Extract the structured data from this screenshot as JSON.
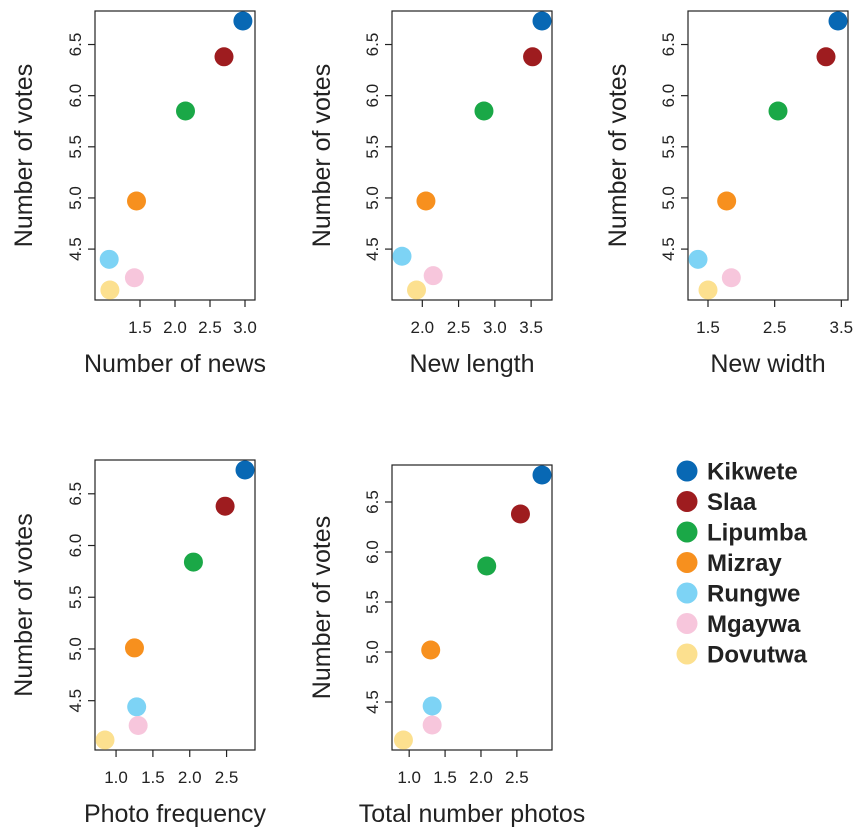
{
  "legend": {
    "entries": [
      {
        "name": "Kikwete",
        "color": "#0868b4"
      },
      {
        "name": "Slaa",
        "color": "#9e1c1f"
      },
      {
        "name": "Lipumba",
        "color": "#1aa847"
      },
      {
        "name": "Mizray",
        "color": "#f7901e"
      },
      {
        "name": "Rungwe",
        "color": "#7dd3f5"
      },
      {
        "name": "Mgaywa",
        "color": "#f7c6dc"
      },
      {
        "name": "Dovutwa",
        "color": "#fce08f"
      }
    ]
  },
  "chart_data": [
    {
      "type": "scatter",
      "xlabel": "Number of news",
      "ylabel": "Number of votes",
      "xticks": [
        1.5,
        2.0,
        2.5,
        3.0
      ],
      "yticks": [
        4.5,
        5.0,
        5.5,
        6.0,
        6.5
      ],
      "xlim": [
        1.0,
        3.0
      ],
      "ylim": [
        4.1,
        6.73
      ],
      "points": [
        {
          "series": "Kikwete",
          "x": 2.97,
          "y": 6.73
        },
        {
          "series": "Slaa",
          "x": 2.7,
          "y": 6.38
        },
        {
          "series": "Lipumba",
          "x": 2.15,
          "y": 5.85
        },
        {
          "series": "Mizray",
          "x": 1.45,
          "y": 4.97
        },
        {
          "series": "Rungwe",
          "x": 1.06,
          "y": 4.4
        },
        {
          "series": "Mgaywa",
          "x": 1.42,
          "y": 4.22
        },
        {
          "series": "Dovutwa",
          "x": 1.07,
          "y": 4.1
        }
      ]
    },
    {
      "type": "scatter",
      "xlabel": "New length",
      "ylabel": "Number of votes",
      "xticks": [
        2.0,
        2.5,
        3.0,
        3.5
      ],
      "yticks": [
        4.5,
        5.0,
        5.5,
        6.0,
        6.5
      ],
      "xlim": [
        1.72,
        3.65
      ],
      "ylim": [
        4.1,
        6.73
      ],
      "points": [
        {
          "series": "Kikwete",
          "x": 3.65,
          "y": 6.73
        },
        {
          "series": "Slaa",
          "x": 3.52,
          "y": 6.38
        },
        {
          "series": "Lipumba",
          "x": 2.85,
          "y": 5.85
        },
        {
          "series": "Mizray",
          "x": 2.05,
          "y": 4.97
        },
        {
          "series": "Rungwe",
          "x": 1.72,
          "y": 4.43
        },
        {
          "series": "Mgaywa",
          "x": 2.15,
          "y": 4.24
        },
        {
          "series": "Dovutwa",
          "x": 1.92,
          "y": 4.1
        }
      ]
    },
    {
      "type": "scatter",
      "xlabel": "New width",
      "ylabel": "Number of votes",
      "xticks": [
        1.5,
        2.5,
        3.5
      ],
      "yticks": [
        4.5,
        5.0,
        5.5,
        6.0,
        6.5
      ],
      "xlim": [
        1.35,
        3.45
      ],
      "ylim": [
        4.1,
        6.73
      ],
      "points": [
        {
          "series": "Kikwete",
          "x": 3.45,
          "y": 6.73
        },
        {
          "series": "Slaa",
          "x": 3.27,
          "y": 6.38
        },
        {
          "series": "Lipumba",
          "x": 2.55,
          "y": 5.85
        },
        {
          "series": "Mizray",
          "x": 1.78,
          "y": 4.97
        },
        {
          "series": "Rungwe",
          "x": 1.35,
          "y": 4.4
        },
        {
          "series": "Mgaywa",
          "x": 1.85,
          "y": 4.22
        },
        {
          "series": "Dovutwa",
          "x": 1.5,
          "y": 4.1
        }
      ]
    },
    {
      "type": "scatter",
      "xlabel": "Photo frequency",
      "ylabel": "Number of votes",
      "xticks": [
        1.0,
        1.5,
        2.0,
        2.5
      ],
      "yticks": [
        4.5,
        5.0,
        5.5,
        6.0,
        6.5
      ],
      "xlim": [
        0.85,
        2.75
      ],
      "ylim": [
        4.12,
        6.73
      ],
      "points": [
        {
          "series": "Kikwete",
          "x": 2.75,
          "y": 6.73
        },
        {
          "series": "Slaa",
          "x": 2.48,
          "y": 6.38
        },
        {
          "series": "Lipumba",
          "x": 2.05,
          "y": 5.84
        },
        {
          "series": "Mizray",
          "x": 1.25,
          "y": 5.01
        },
        {
          "series": "Rungwe",
          "x": 1.28,
          "y": 4.44
        },
        {
          "series": "Mgaywa",
          "x": 1.3,
          "y": 4.26
        },
        {
          "series": "Dovutwa",
          "x": 0.85,
          "y": 4.12
        }
      ]
    },
    {
      "type": "scatter",
      "xlabel": "Total number photos",
      "ylabel": "Number of votes",
      "xticks": [
        1.0,
        1.5,
        2.0,
        2.5
      ],
      "yticks": [
        4.5,
        5.0,
        5.5,
        6.0,
        6.5
      ],
      "xlim": [
        0.9,
        2.85
      ],
      "ylim": [
        4.12,
        6.77
      ],
      "points": [
        {
          "series": "Kikwete",
          "x": 2.85,
          "y": 6.77
        },
        {
          "series": "Slaa",
          "x": 2.55,
          "y": 6.38
        },
        {
          "series": "Lipumba",
          "x": 2.08,
          "y": 5.86
        },
        {
          "series": "Mizray",
          "x": 1.3,
          "y": 5.02
        },
        {
          "series": "Rungwe",
          "x": 1.32,
          "y": 4.46
        },
        {
          "series": "Mgaywa",
          "x": 1.32,
          "y": 4.27
        },
        {
          "series": "Dovutwa",
          "x": 0.92,
          "y": 4.12
        }
      ]
    }
  ]
}
